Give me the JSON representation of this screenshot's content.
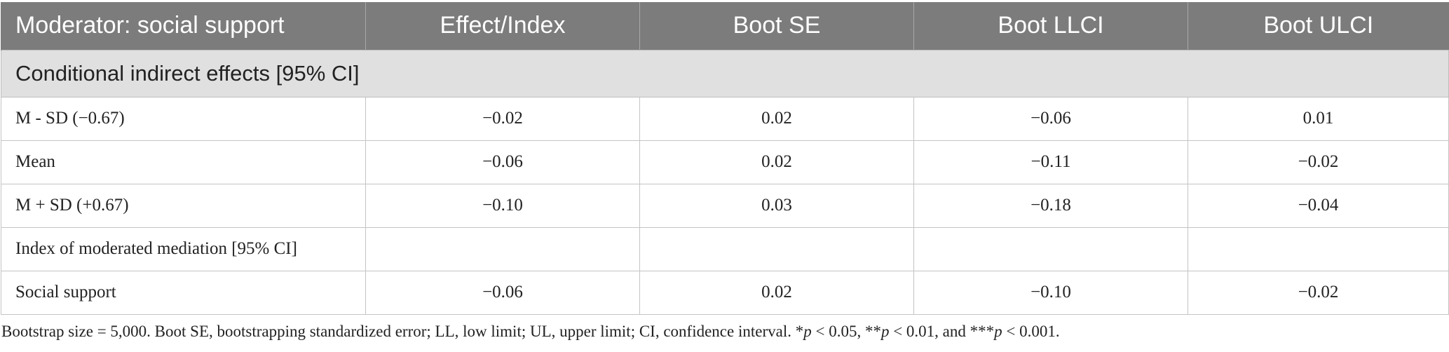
{
  "table": {
    "headers": [
      "Moderator: social support",
      "Effect/Index",
      "Boot SE",
      "Boot LLCI",
      "Boot ULCI"
    ],
    "section_title": "Conditional indirect effects [95% CI]",
    "rows": [
      [
        "M - SD (−0.67)",
        "−0.02",
        "0.02",
        "−0.06",
        "0.01"
      ],
      [
        "Mean",
        "−0.06",
        "0.02",
        "−0.11",
        "−0.02"
      ],
      [
        "M + SD (+0.67)",
        "−0.10",
        "0.03",
        "−0.18",
        "−0.04"
      ],
      [
        "Index of moderated mediation [95% CI]",
        "",
        "",
        "",
        ""
      ],
      [
        "Social support",
        "−0.06",
        "0.02",
        "−0.10",
        "−0.02"
      ]
    ]
  },
  "note": {
    "text_1": "Bootstrap size = 5,000. Boot SE, bootstrapping standardized error; LL, low limit; UL, upper limit; CI, confidence interval. *",
    "p": "p",
    "text_2": " < 0.05, **",
    "text_3": " < 0.01, and ***",
    "text_4": " < 0.001."
  },
  "colors": {
    "header_bg": "#7b7c7b",
    "section_bg": "#e0e0e0",
    "grid": "#c4c4c4"
  }
}
